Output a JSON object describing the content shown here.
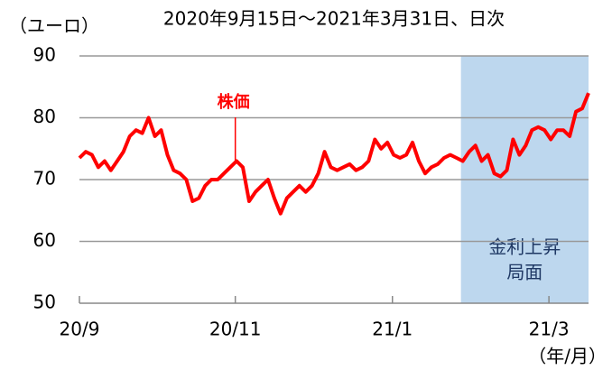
{
  "chart_data": {
    "type": "line",
    "subtitle": "2020年9月15日～2021年3月31日、日次",
    "y_unit": "（ユーロ）",
    "x_unit": "（年/月）",
    "ylim": [
      50,
      90
    ],
    "yticks": [
      50,
      60,
      70,
      80,
      90
    ],
    "xlim": [
      0,
      81
    ],
    "xticks": [
      {
        "value": 0,
        "label": "20/9"
      },
      {
        "value": 24.8,
        "label": "20/11"
      },
      {
        "value": 49.8,
        "label": "21/1"
      },
      {
        "value": 74.7,
        "label": "21/3"
      }
    ],
    "grid": true,
    "shaded_region": {
      "xlim": [
        60.7,
        81
      ],
      "color": "#bdd7ee",
      "label_lines": [
        "金利上昇",
        "局面"
      ]
    },
    "annotation": {
      "text": "株価",
      "x": 24.8
    },
    "series": [
      {
        "name": "株価",
        "color": "#ff0000",
        "values": [
          73.5,
          74.5,
          74,
          72,
          73,
          71.5,
          73,
          74.5,
          77,
          78,
          77.5,
          80,
          77,
          78,
          74,
          71.5,
          71,
          70,
          66.5,
          67,
          69,
          70,
          70,
          71,
          72,
          73,
          72,
          66.5,
          68,
          69,
          70,
          67,
          64.5,
          67,
          68,
          69,
          68,
          69,
          71,
          74.5,
          72,
          71.5,
          72,
          72.5,
          71.5,
          72,
          73,
          76.5,
          75,
          76,
          74,
          73.5,
          74,
          76,
          73,
          71,
          72,
          72.5,
          73.5,
          74,
          73.5,
          73,
          74.5,
          75.5,
          73,
          74,
          71,
          70.5,
          71.5,
          76.5,
          74,
          75.5,
          78,
          78.5,
          78,
          76.5,
          78,
          78,
          77,
          81,
          81.5,
          84
        ]
      }
    ]
  }
}
